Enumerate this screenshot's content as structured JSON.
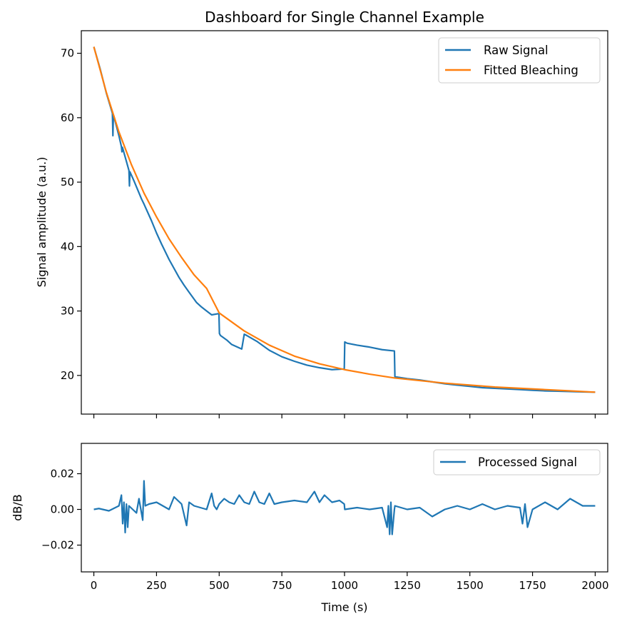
{
  "title": "Dashboard for Single Channel Example",
  "colors": {
    "raw": "#1f77b4",
    "fit": "#ff7f0e",
    "processed": "#1f77b4"
  },
  "chart_data": [
    {
      "type": "line",
      "ylabel": "Signal amplitude (a.u.)",
      "xlabel": "",
      "xlim": [
        -50,
        2050
      ],
      "ylim": [
        14,
        73.5
      ],
      "xticks": [
        0,
        250,
        500,
        750,
        1000,
        1250,
        1500,
        1750,
        2000
      ],
      "xtick_labels_visible": false,
      "yticks": [
        20,
        30,
        40,
        50,
        60,
        70
      ],
      "ytick_labels": [
        "20",
        "30",
        "40",
        "50",
        "60",
        "70"
      ],
      "legend_position": "upper-right",
      "series": [
        {
          "name": "Raw Signal",
          "x": [
            0,
            25,
            50,
            74,
            76,
            78,
            80,
            100,
            110,
            112,
            114,
            130,
            140,
            142,
            144,
            160,
            190,
            200,
            230,
            250,
            270,
            300,
            340,
            360,
            380,
            410,
            430,
            450,
            470,
            499,
            501,
            505,
            530,
            550,
            590,
            600,
            610,
            650,
            700,
            750,
            800,
            850,
            900,
            950,
            999,
            1001,
            1010,
            1050,
            1100,
            1150,
            1199,
            1201,
            1250,
            1300,
            1350,
            1400,
            1450,
            1500,
            1550,
            1600,
            1650,
            1700,
            1750,
            1800,
            1850,
            1900,
            1950,
            2000
          ],
          "y": [
            71,
            67.6,
            63.8,
            60.7,
            57.2,
            60.4,
            60.2,
            57.2,
            55.5,
            54.7,
            55.4,
            53.2,
            51.8,
            49.4,
            51.6,
            50.2,
            47.4,
            46.6,
            44.0,
            42.1,
            40.4,
            38.0,
            35.2,
            34.0,
            32.9,
            31.3,
            30.6,
            30.0,
            29.4,
            29.6,
            26.5,
            26.2,
            25.5,
            24.8,
            24.1,
            26.4,
            26.2,
            25.3,
            23.9,
            22.9,
            22.2,
            21.6,
            21.2,
            20.9,
            21.0,
            25.2,
            25.0,
            24.7,
            24.4,
            24.0,
            23.8,
            19.8,
            19.5,
            19.3,
            19.0,
            18.7,
            18.5,
            18.3,
            18.1,
            18.0,
            17.9,
            17.8,
            17.7,
            17.6,
            17.55,
            17.5,
            17.45,
            17.4
          ]
        },
        {
          "name": "Fitted Bleaching",
          "x": [
            0,
            50,
            100,
            150,
            200,
            250,
            300,
            350,
            400,
            450,
            500,
            600,
            700,
            800,
            900,
            1000,
            1100,
            1200,
            1300,
            1400,
            1500,
            1600,
            1700,
            1800,
            1900,
            2000
          ],
          "y": [
            71.0,
            63.9,
            57.8,
            52.7,
            48.3,
            44.6,
            41.2,
            38.3,
            35.6,
            33.5,
            29.7,
            26.9,
            24.7,
            23.0,
            21.8,
            20.9,
            20.2,
            19.6,
            19.2,
            18.8,
            18.5,
            18.2,
            18.0,
            17.8,
            17.6,
            17.4
          ]
        }
      ]
    },
    {
      "type": "line",
      "xlabel": "Time (s)",
      "ylabel": "dB/B",
      "xlim": [
        -50,
        2050
      ],
      "ylim": [
        -0.035,
        0.037
      ],
      "xticks": [
        0,
        250,
        500,
        750,
        1000,
        1250,
        1500,
        1750,
        2000
      ],
      "xtick_labels": [
        "0",
        "250",
        "500",
        "750",
        "1000",
        "1250",
        "1500",
        "1750",
        "2000"
      ],
      "yticks": [
        -0.02,
        0.0,
        0.02
      ],
      "ytick_labels": [
        "−0.02",
        "0.00",
        "0.02"
      ],
      "legend_position": "upper-right",
      "series": [
        {
          "name": "Processed Signal",
          "x": [
            0,
            20,
            60,
            100,
            110,
            115,
            120,
            125,
            130,
            135,
            140,
            170,
            180,
            195,
            200,
            205,
            220,
            250,
            300,
            320,
            350,
            370,
            380,
            400,
            450,
            470,
            480,
            490,
            500,
            520,
            540,
            560,
            580,
            600,
            620,
            640,
            660,
            680,
            700,
            720,
            750,
            800,
            850,
            880,
            900,
            920,
            950,
            980,
            999,
            1001,
            1050,
            1100,
            1150,
            1170,
            1175,
            1180,
            1185,
            1190,
            1199,
            1201,
            1250,
            1300,
            1350,
            1400,
            1450,
            1500,
            1550,
            1600,
            1650,
            1700,
            1710,
            1720,
            1730,
            1750,
            1800,
            1850,
            1900,
            1950,
            2000
          ],
          "y": [
            0.0,
            0.0005,
            -0.0008,
            0.002,
            0.008,
            -0.008,
            0.004,
            -0.013,
            0.003,
            -0.01,
            0.002,
            -0.002,
            0.006,
            -0.006,
            0.016,
            0.002,
            0.003,
            0.004,
            0.0,
            0.007,
            0.003,
            -0.009,
            0.004,
            0.002,
            0.0,
            0.009,
            0.002,
            0.0,
            0.003,
            0.006,
            0.004,
            0.003,
            0.008,
            0.004,
            0.003,
            0.01,
            0.004,
            0.003,
            0.009,
            0.003,
            0.004,
            0.005,
            0.004,
            0.01,
            0.004,
            0.008,
            0.004,
            0.005,
            0.003,
            0.0,
            0.001,
            0.0,
            0.001,
            -0.01,
            0.002,
            -0.014,
            0.004,
            -0.014,
            0.0,
            0.002,
            0.0,
            0.001,
            -0.004,
            0.0,
            0.002,
            0.0,
            0.003,
            0.0,
            0.002,
            0.001,
            -0.008,
            0.003,
            -0.01,
            0.0,
            0.004,
            0.0,
            0.006,
            0.002,
            0.002
          ]
        }
      ]
    }
  ]
}
